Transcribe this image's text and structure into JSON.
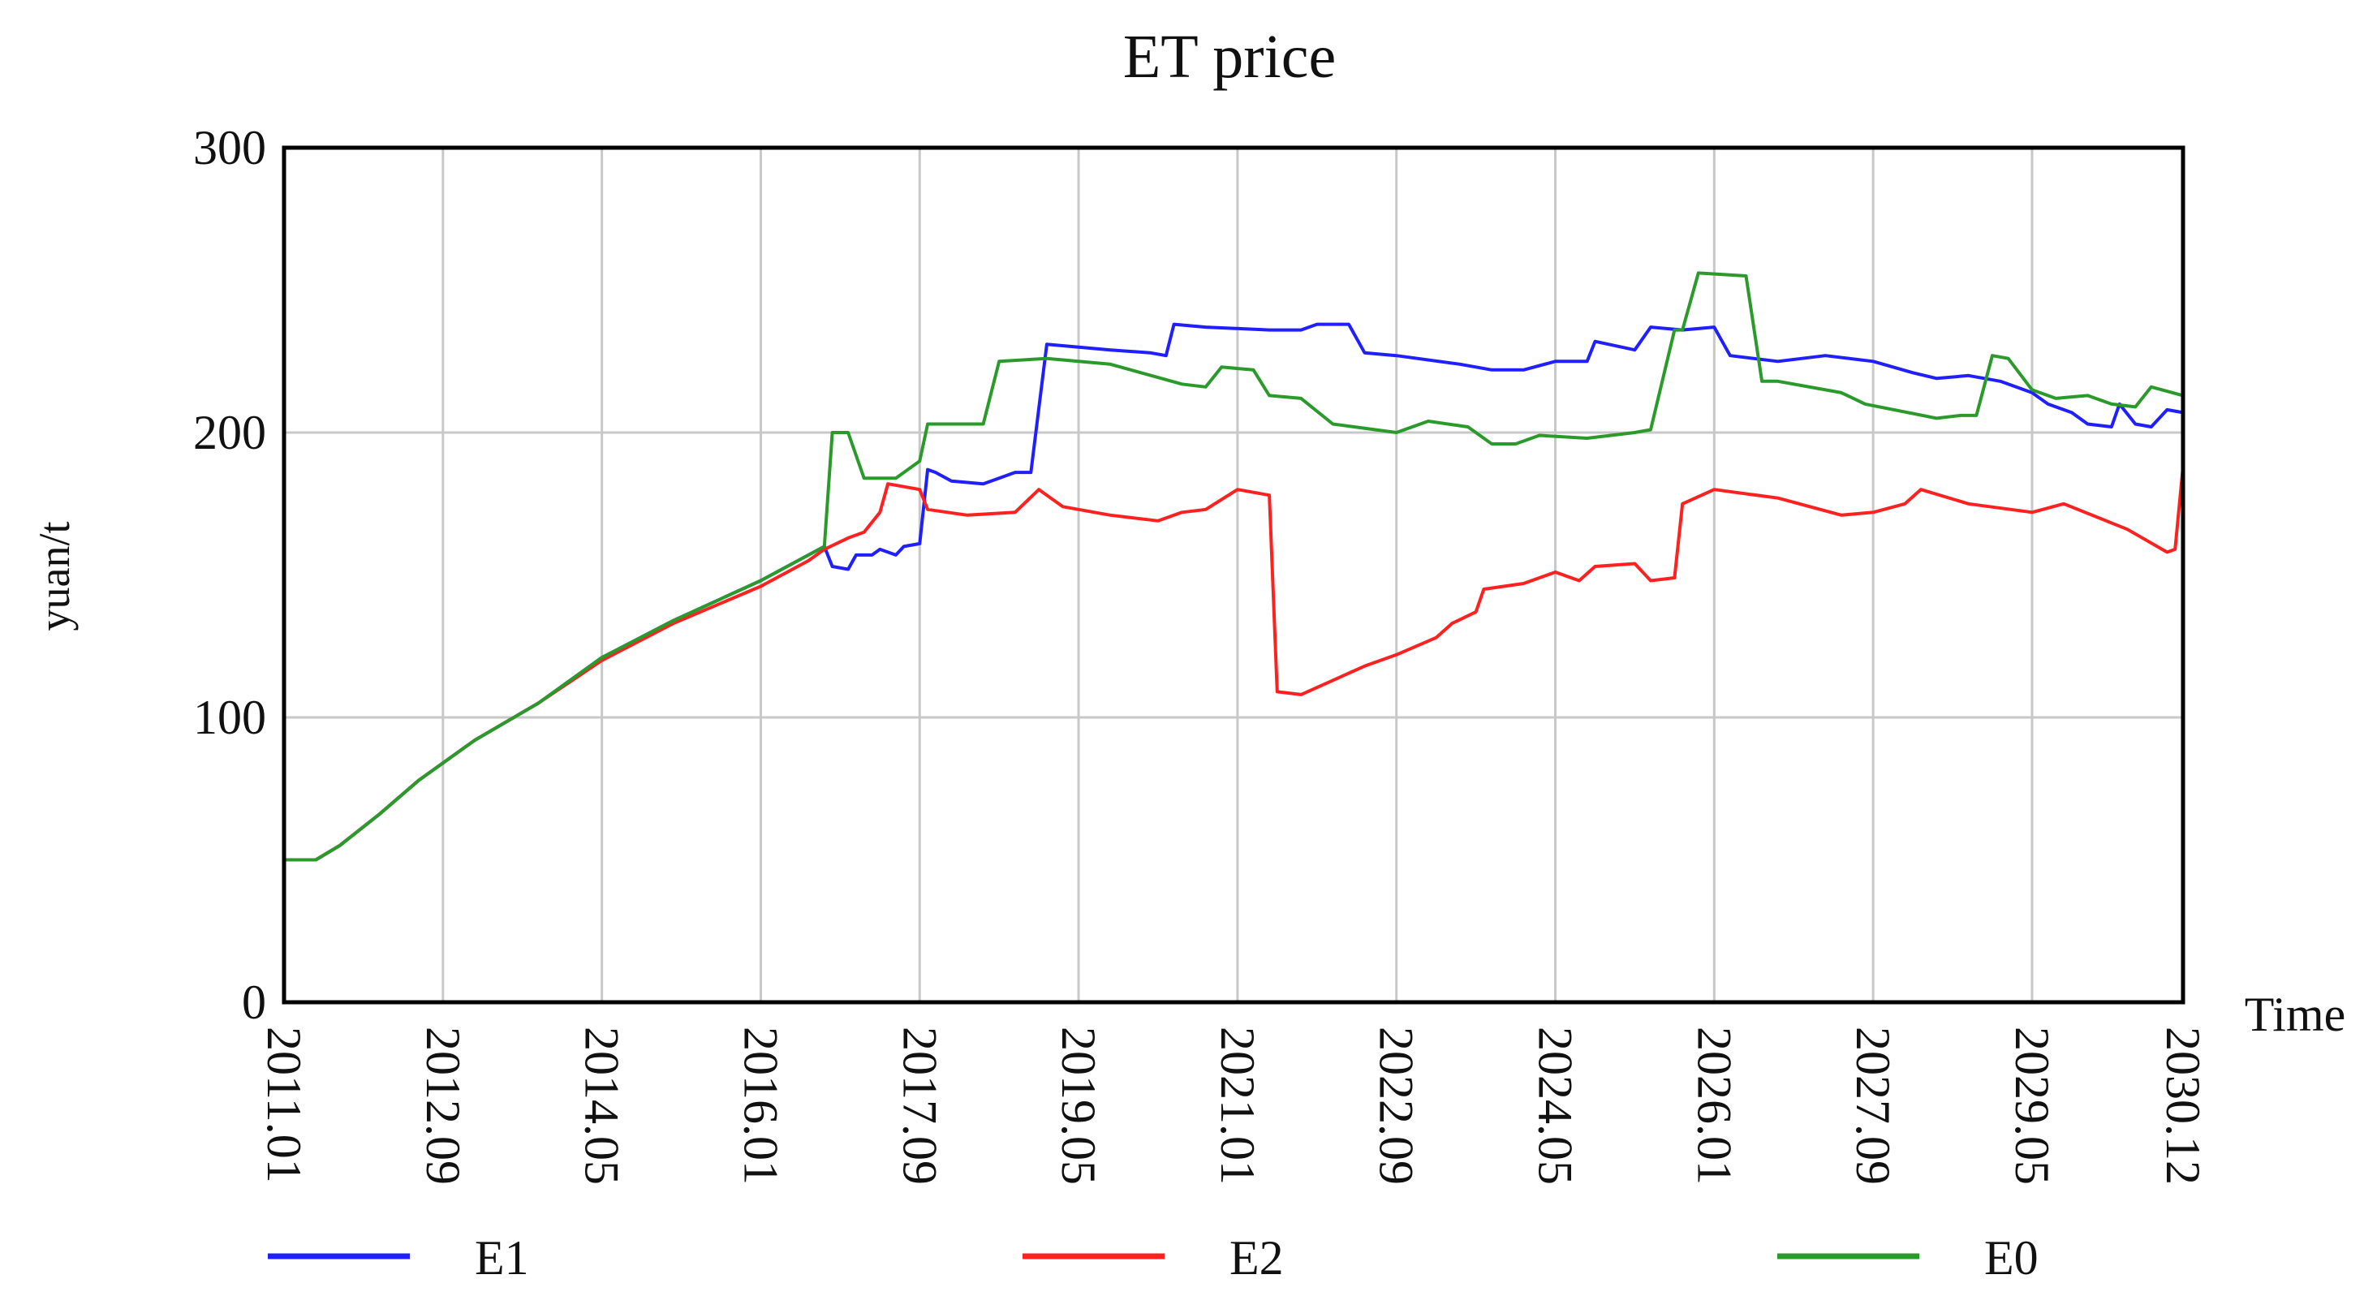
{
  "chart_data": {
    "type": "line",
    "title": "ET price",
    "xlabel": "Time",
    "ylabel": "yuan/t",
    "ylim": [
      0,
      300
    ],
    "yticks": [
      "0",
      "100",
      "200",
      "300"
    ],
    "xlim": [
      "2011.01",
      "2030.12"
    ],
    "xticks": [
      "2011.01",
      "2012.09",
      "2014.05",
      "2016.01",
      "2017.09",
      "2019.05",
      "2021.01",
      "2022.09",
      "2024.05",
      "2026.01",
      "2027.09",
      "2029.05",
      "2030.12"
    ],
    "grid": true,
    "legend_position": "bottom",
    "series": [
      {
        "name": "E1",
        "color": "#1f1fff",
        "points": [
          [
            "2011.01",
            50
          ],
          [
            "2011.05",
            50
          ],
          [
            "2011.08",
            55
          ],
          [
            "2012.01",
            66
          ],
          [
            "2012.06",
            78
          ],
          [
            "2013.01",
            92
          ],
          [
            "2013.09",
            105
          ],
          [
            "2014.05",
            121
          ],
          [
            "2015.02",
            134
          ],
          [
            "2016.01",
            148
          ],
          [
            "2016.07",
            157
          ],
          [
            "2016.09",
            160
          ],
          [
            "2016.10",
            153
          ],
          [
            "2016.12",
            152
          ],
          [
            "2017.01",
            157
          ],
          [
            "2017.03",
            157
          ],
          [
            "2017.04",
            159
          ],
          [
            "2017.06",
            157
          ],
          [
            "2017.07",
            160
          ],
          [
            "2017.09",
            161
          ],
          [
            "2017.10",
            187
          ],
          [
            "2017.11",
            186
          ],
          [
            "2018.01",
            183
          ],
          [
            "2018.05",
            182
          ],
          [
            "2018.09",
            186
          ],
          [
            "2018.11",
            186
          ],
          [
            "2019.01",
            231
          ],
          [
            "2019.05",
            230
          ],
          [
            "2019.09",
            229
          ],
          [
            "2020.02",
            228
          ],
          [
            "2020.04",
            227
          ],
          [
            "2020.05",
            238
          ],
          [
            "2020.09",
            237
          ],
          [
            "2021.05",
            236
          ],
          [
            "2021.09",
            236
          ],
          [
            "2021.11",
            238
          ],
          [
            "2022.03",
            238
          ],
          [
            "2022.05",
            228
          ],
          [
            "2022.09",
            227
          ],
          [
            "2023.05",
            224
          ],
          [
            "2023.09",
            222
          ],
          [
            "2024.01",
            222
          ],
          [
            "2024.05",
            225
          ],
          [
            "2024.09",
            225
          ],
          [
            "2024.10",
            232
          ],
          [
            "2025.03",
            229
          ],
          [
            "2025.05",
            237
          ],
          [
            "2025.09",
            236
          ],
          [
            "2026.01",
            237
          ],
          [
            "2026.03",
            227
          ],
          [
            "2026.09",
            225
          ],
          [
            "2027.03",
            227
          ],
          [
            "2027.09",
            225
          ],
          [
            "2028.02",
            221
          ],
          [
            "2028.05",
            219
          ],
          [
            "2028.09",
            220
          ],
          [
            "2029.01",
            218
          ],
          [
            "2029.05",
            214
          ],
          [
            "2029.07",
            210
          ],
          [
            "2029.10",
            207
          ],
          [
            "2029.12",
            203
          ],
          [
            "2030.03",
            202
          ],
          [
            "2030.04",
            210
          ],
          [
            "2030.06",
            203
          ],
          [
            "2030.08",
            202
          ],
          [
            "2030.10",
            208
          ],
          [
            "2030.12",
            207
          ]
        ]
      },
      {
        "name": "E2",
        "color": "#ff2020",
        "points": [
          [
            "2011.01",
            50
          ],
          [
            "2011.05",
            50
          ],
          [
            "2011.08",
            55
          ],
          [
            "2012.01",
            66
          ],
          [
            "2012.06",
            78
          ],
          [
            "2013.01",
            92
          ],
          [
            "2013.09",
            105
          ],
          [
            "2014.05",
            120
          ],
          [
            "2015.02",
            133
          ],
          [
            "2016.01",
            146
          ],
          [
            "2016.07",
            155
          ],
          [
            "2016.09",
            159
          ],
          [
            "2016.12",
            163
          ],
          [
            "2017.02",
            165
          ],
          [
            "2017.04",
            172
          ],
          [
            "2017.05",
            182
          ],
          [
            "2017.09",
            180
          ],
          [
            "2017.10",
            173
          ],
          [
            "2018.03",
            171
          ],
          [
            "2018.09",
            172
          ],
          [
            "2018.12",
            180
          ],
          [
            "2019.03",
            174
          ],
          [
            "2019.09",
            171
          ],
          [
            "2020.03",
            169
          ],
          [
            "2020.06",
            172
          ],
          [
            "2020.09",
            173
          ],
          [
            "2021.01",
            180
          ],
          [
            "2021.05",
            178
          ],
          [
            "2021.06",
            109
          ],
          [
            "2021.09",
            108
          ],
          [
            "2022.05",
            118
          ],
          [
            "2022.09",
            122
          ],
          [
            "2023.02",
            128
          ],
          [
            "2023.04",
            133
          ],
          [
            "2023.07",
            137
          ],
          [
            "2023.08",
            145
          ],
          [
            "2024.01",
            147
          ],
          [
            "2024.05",
            151
          ],
          [
            "2024.08",
            148
          ],
          [
            "2024.10",
            153
          ],
          [
            "2025.03",
            154
          ],
          [
            "2025.05",
            148
          ],
          [
            "2025.08",
            149
          ],
          [
            "2025.09",
            175
          ],
          [
            "2026.01",
            180
          ],
          [
            "2026.09",
            177
          ],
          [
            "2027.05",
            171
          ],
          [
            "2027.09",
            172
          ],
          [
            "2028.01",
            175
          ],
          [
            "2028.03",
            180
          ],
          [
            "2028.09",
            175
          ],
          [
            "2029.05",
            172
          ],
          [
            "2029.09",
            175
          ],
          [
            "2030.05",
            166
          ],
          [
            "2030.10",
            158
          ],
          [
            "2030.11",
            159
          ],
          [
            "2030.12",
            188
          ]
        ]
      },
      {
        "name": "E0",
        "color": "#2a9a2a",
        "points": [
          [
            "2011.01",
            50
          ],
          [
            "2011.05",
            50
          ],
          [
            "2011.08",
            55
          ],
          [
            "2012.01",
            66
          ],
          [
            "2012.06",
            78
          ],
          [
            "2013.01",
            92
          ],
          [
            "2013.09",
            105
          ],
          [
            "2014.05",
            121
          ],
          [
            "2015.02",
            134
          ],
          [
            "2016.01",
            148
          ],
          [
            "2016.07",
            157
          ],
          [
            "2016.09",
            160
          ],
          [
            "2016.10",
            200
          ],
          [
            "2016.12",
            200
          ],
          [
            "2017.02",
            184
          ],
          [
            "2017.06",
            184
          ],
          [
            "2017.09",
            190
          ],
          [
            "2017.10",
            203
          ],
          [
            "2018.05",
            203
          ],
          [
            "2018.07",
            225
          ],
          [
            "2019.01",
            226
          ],
          [
            "2019.09",
            224
          ],
          [
            "2020.06",
            217
          ],
          [
            "2020.09",
            216
          ],
          [
            "2020.11",
            223
          ],
          [
            "2021.03",
            222
          ],
          [
            "2021.05",
            213
          ],
          [
            "2021.09",
            212
          ],
          [
            "2022.01",
            203
          ],
          [
            "2022.09",
            200
          ],
          [
            "2023.01",
            204
          ],
          [
            "2023.06",
            202
          ],
          [
            "2023.09",
            196
          ],
          [
            "2023.12",
            196
          ],
          [
            "2024.03",
            199
          ],
          [
            "2024.09",
            198
          ],
          [
            "2025.03",
            200
          ],
          [
            "2025.05",
            201
          ],
          [
            "2025.08",
            236
          ],
          [
            "2025.09",
            236
          ],
          [
            "2025.11",
            256
          ],
          [
            "2026.05",
            255
          ],
          [
            "2026.07",
            218
          ],
          [
            "2026.09",
            218
          ],
          [
            "2027.05",
            214
          ],
          [
            "2027.08",
            210
          ],
          [
            "2028.05",
            205
          ],
          [
            "2028.08",
            206
          ],
          [
            "2028.10",
            206
          ],
          [
            "2028.12",
            227
          ],
          [
            "2029.02",
            226
          ],
          [
            "2029.05",
            215
          ],
          [
            "2029.08",
            212
          ],
          [
            "2029.12",
            213
          ],
          [
            "2030.03",
            210
          ],
          [
            "2030.06",
            209
          ],
          [
            "2030.08",
            216
          ],
          [
            "2030.12",
            213
          ]
        ]
      }
    ]
  }
}
